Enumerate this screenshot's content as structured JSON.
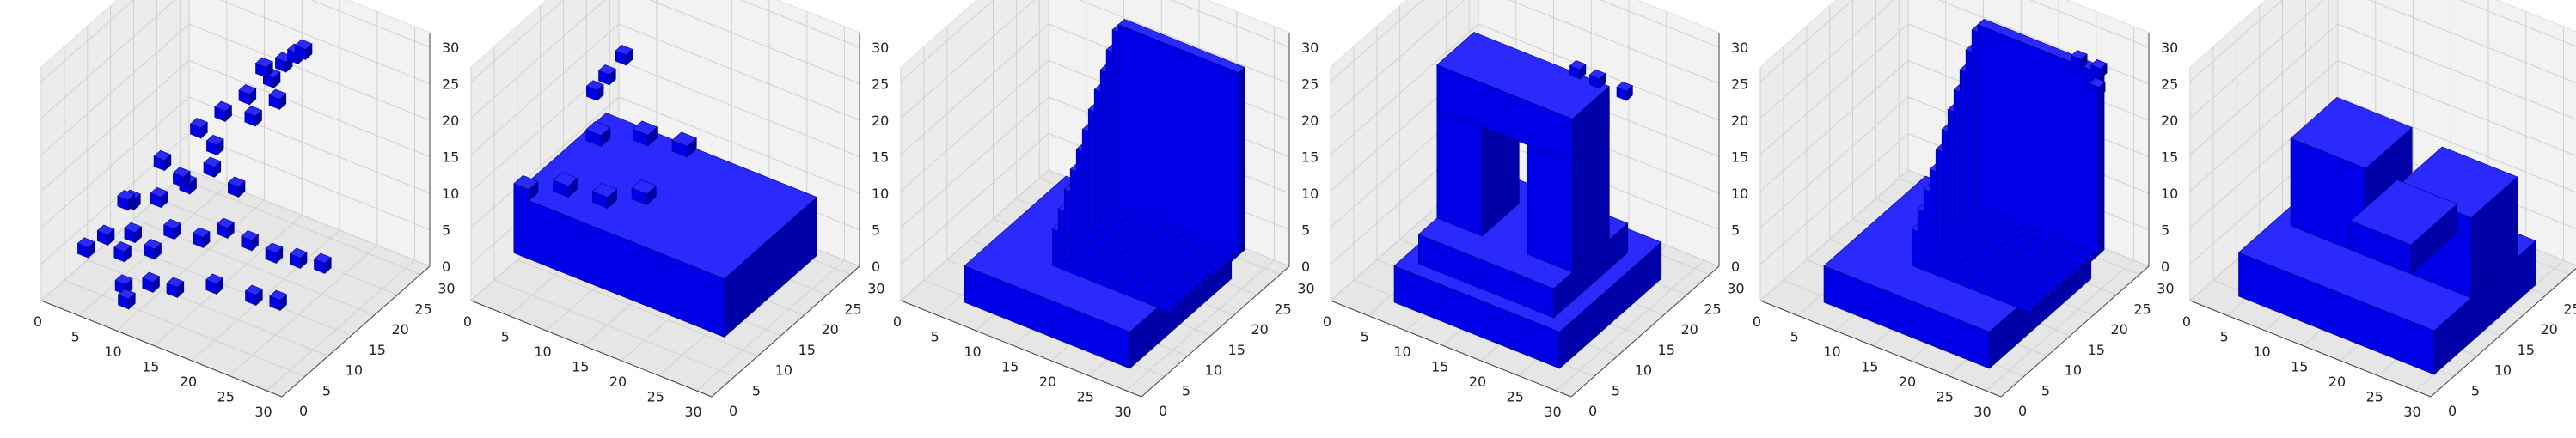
{
  "figure": {
    "panel_count": 6
  },
  "chart_data": [
    {
      "type": "voxel3d",
      "subject": "sparse scattered voxels, chair-like remnant",
      "color": "#0000ff",
      "xticks": [
        0,
        5,
        10,
        15,
        20,
        25,
        30
      ],
      "yticks": [
        0,
        5,
        10,
        15,
        20,
        25,
        30
      ],
      "zticks": [
        0,
        5,
        10,
        15,
        20,
        25,
        30
      ],
      "xlim": [
        0,
        32
      ],
      "ylim": [
        0,
        32
      ],
      "zlim": [
        0,
        32
      ],
      "grid": true
    },
    {
      "type": "voxel3d",
      "subject": "wide flat slab with small protrusions",
      "color": "#0000ff",
      "xticks": [
        0,
        5,
        10,
        15,
        20,
        25,
        30
      ],
      "yticks": [
        0,
        5,
        10,
        15,
        20,
        25,
        30
      ],
      "zticks": [
        0,
        5,
        10,
        15,
        20,
        25,
        30
      ],
      "xlim": [
        0,
        32
      ],
      "ylim": [
        0,
        32
      ],
      "zlim": [
        0,
        32
      ],
      "grid": true
    },
    {
      "type": "voxel3d",
      "subject": "solid base with sloped ramp rising to the back",
      "color": "#0000ff",
      "xticks": [
        0,
        5,
        10,
        15,
        20,
        25,
        30
      ],
      "yticks": [
        0,
        5,
        10,
        15,
        20,
        25,
        30
      ],
      "zticks": [
        0,
        5,
        10,
        15,
        20,
        25,
        30
      ],
      "xlim": [
        0,
        32
      ],
      "ylim": [
        0,
        32
      ],
      "zlim": [
        0,
        32
      ],
      "grid": true
    },
    {
      "type": "voxel3d",
      "subject": "arch / doorway shape on a thick base",
      "color": "#0000ff",
      "xticks": [
        0,
        5,
        10,
        15,
        20,
        25,
        30
      ],
      "yticks": [
        0,
        5,
        10,
        15,
        20,
        25,
        30
      ],
      "zticks": [
        0,
        5,
        10,
        15,
        20,
        25,
        30
      ],
      "xlim": [
        0,
        32
      ],
      "ylim": [
        0,
        32
      ],
      "zlim": [
        0,
        32
      ],
      "grid": true
    },
    {
      "type": "voxel3d",
      "subject": "base with sloped ramp, slightly noisier",
      "color": "#0000ff",
      "xticks": [
        0,
        5,
        10,
        15,
        20,
        25,
        30
      ],
      "yticks": [
        0,
        5,
        10,
        15,
        20,
        25,
        30
      ],
      "zticks": [
        0,
        5,
        10,
        15,
        20,
        25,
        30
      ],
      "xlim": [
        0,
        32
      ],
      "ylim": [
        0,
        32
      ],
      "zlim": [
        0,
        32
      ],
      "grid": true
    },
    {
      "type": "voxel3d",
      "subject": "low block with two humps",
      "color": "#0000ff",
      "xticks": [
        0,
        5,
        10,
        15,
        20,
        25,
        30
      ],
      "yticks": [
        0,
        5,
        10,
        15,
        20,
        25,
        30
      ],
      "zticks": [
        0,
        5,
        10,
        15,
        20,
        25,
        30
      ],
      "xlim": [
        0,
        32
      ],
      "ylim": [
        0,
        32
      ],
      "zlim": [
        0,
        32
      ],
      "grid": true
    }
  ]
}
